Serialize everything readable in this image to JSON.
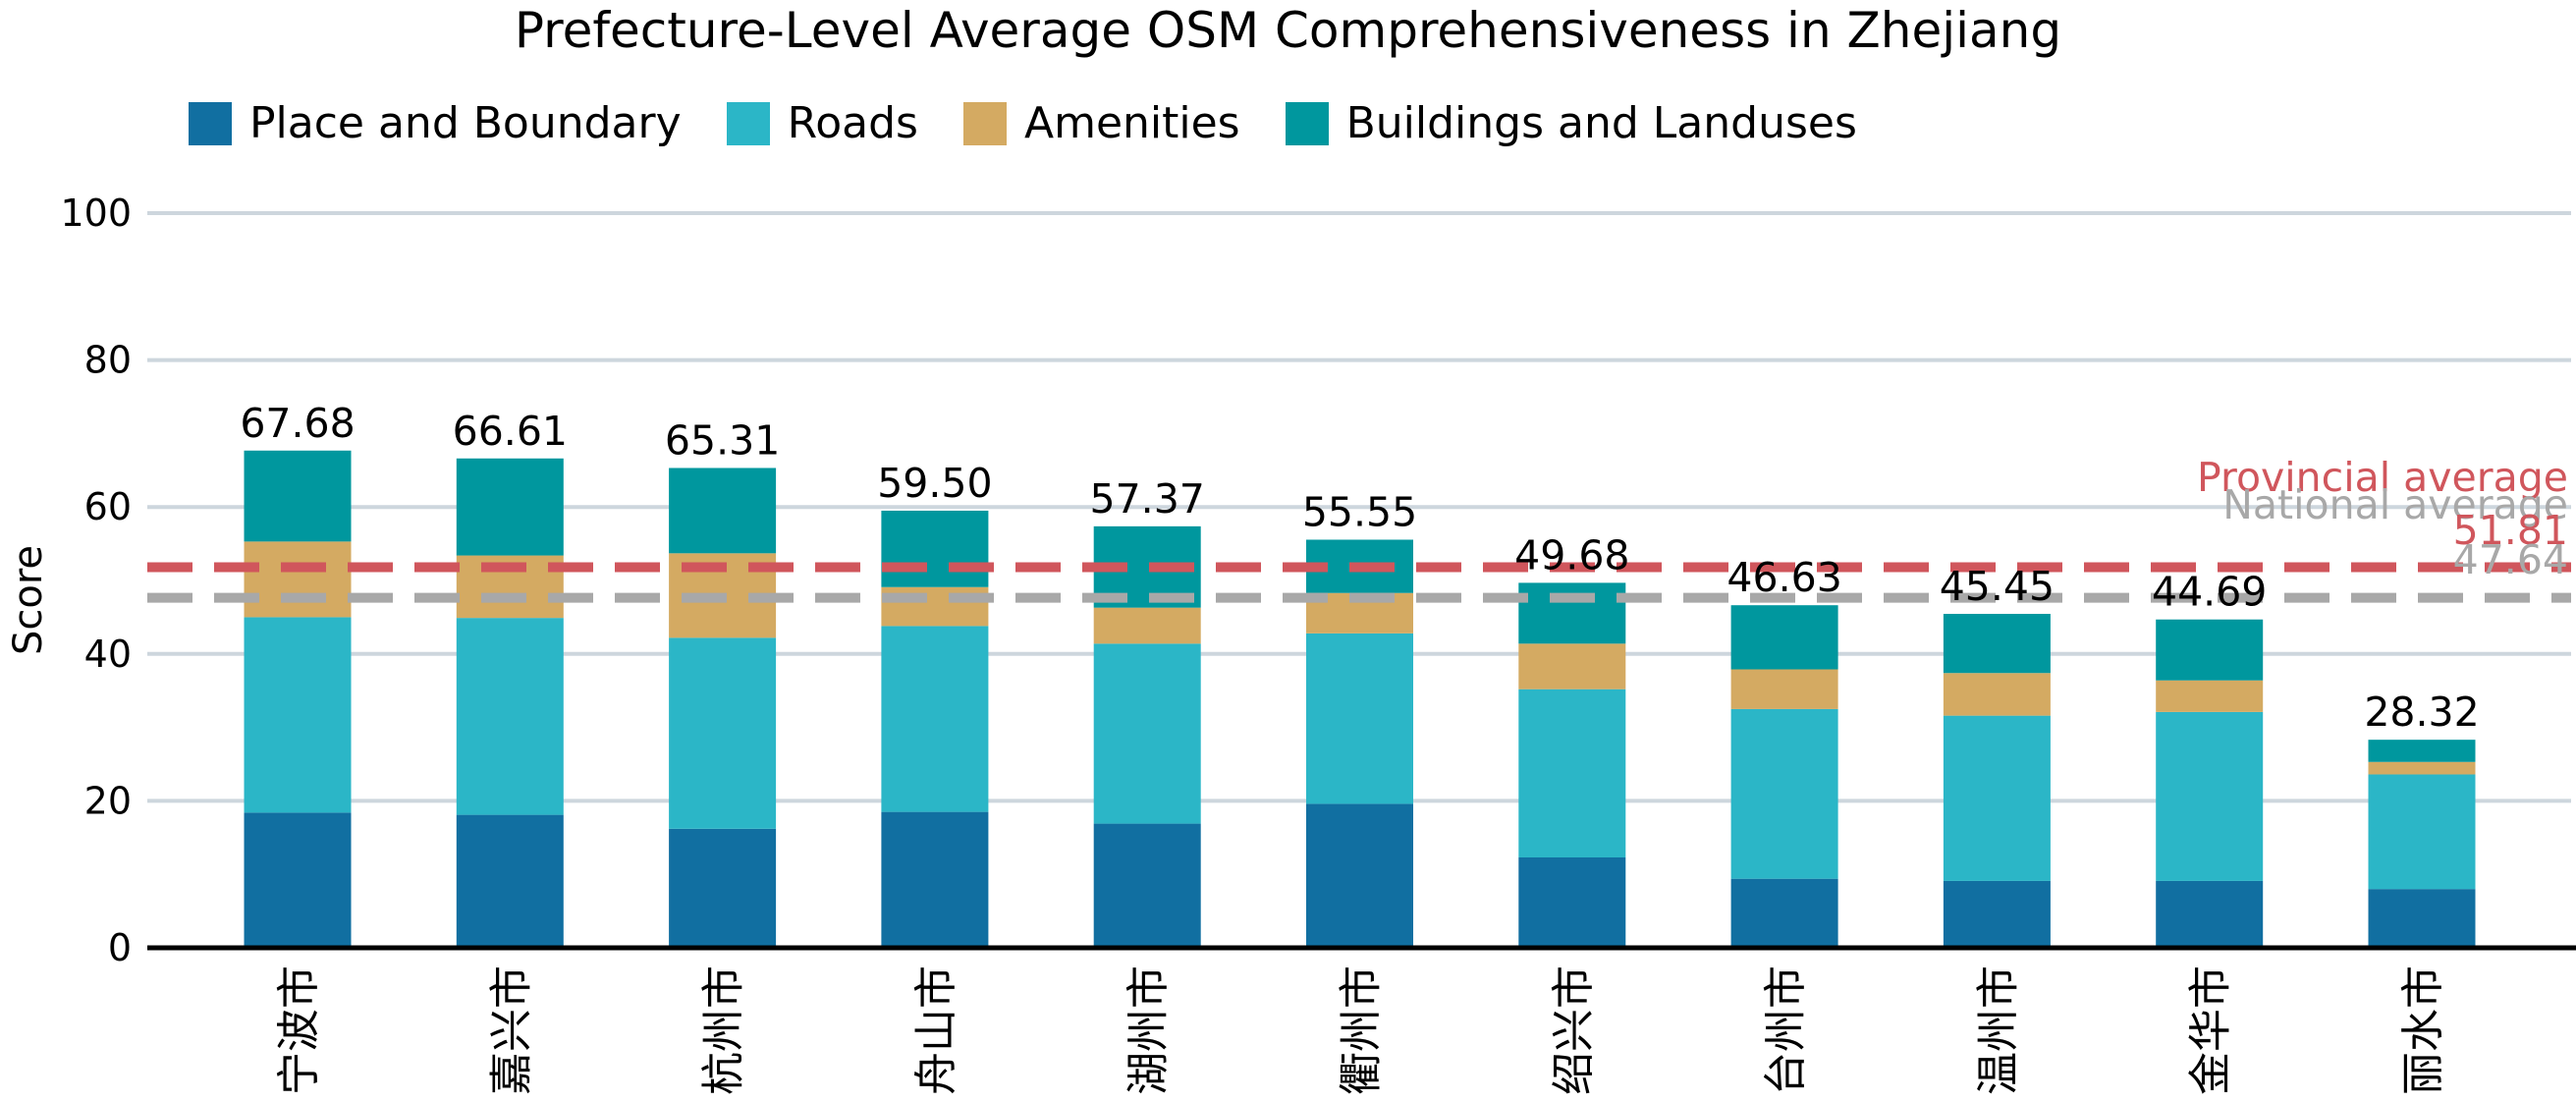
{
  "chart_data": {
    "type": "bar",
    "stacked": true,
    "title": "Prefecture-Level Average OSM Comprehensiveness in Zhejiang",
    "xlabel": "",
    "ylabel": "Score",
    "ylim": [
      0,
      100
    ],
    "yticks": [
      0,
      20,
      40,
      60,
      80,
      100
    ],
    "grid": true,
    "legend_position": "top-left",
    "categories": [
      "宁波市",
      "嘉兴市",
      "杭州市",
      "舟山市",
      "湖州市",
      "衢州市",
      "绍兴市",
      "台州市",
      "温州市",
      "金华市",
      "丽水市"
    ],
    "series": [
      {
        "name": "Place and Boundary",
        "color": "#116fa1",
        "values": [
          18.4,
          18.1,
          16.2,
          18.5,
          16.9,
          19.6,
          12.3,
          9.4,
          9.1,
          9.1,
          8.0
        ]
      },
      {
        "name": "Roads",
        "color": "#2bb6c7",
        "values": [
          26.6,
          26.8,
          26.0,
          25.3,
          24.5,
          23.2,
          22.9,
          23.1,
          22.5,
          23.0,
          15.6
        ]
      },
      {
        "name": "Amenities",
        "color": "#d4aa62",
        "values": [
          10.3,
          8.5,
          11.5,
          5.3,
          4.9,
          5.5,
          6.2,
          5.4,
          5.8,
          4.3,
          1.7
        ]
      },
      {
        "name": "Buildings and Landuses",
        "color": "#00979e",
        "values": [
          12.38,
          13.21,
          11.61,
          10.4,
          11.07,
          7.25,
          8.28,
          8.73,
          8.05,
          8.29,
          3.02
        ]
      }
    ],
    "totals": [
      67.68,
      66.61,
      65.31,
      59.5,
      57.37,
      55.55,
      49.68,
      46.63,
      45.45,
      44.69,
      28.32
    ],
    "total_labels": [
      "67.68",
      "66.61",
      "65.31",
      "59.50",
      "57.37",
      "55.55",
      "49.68",
      "46.63",
      "45.45",
      "44.69",
      "28.32"
    ],
    "reference_lines": [
      {
        "name": "Provincial average",
        "value": 51.81,
        "value_label": "51.81",
        "color": "#d0565c",
        "style": "dashed"
      },
      {
        "name": "National average",
        "value": 47.64,
        "value_label": "47.64",
        "color": "#a8a8a8",
        "style": "dashed"
      }
    ],
    "colors": {
      "grid": "#cdd6dd",
      "axis": "#000000"
    }
  }
}
